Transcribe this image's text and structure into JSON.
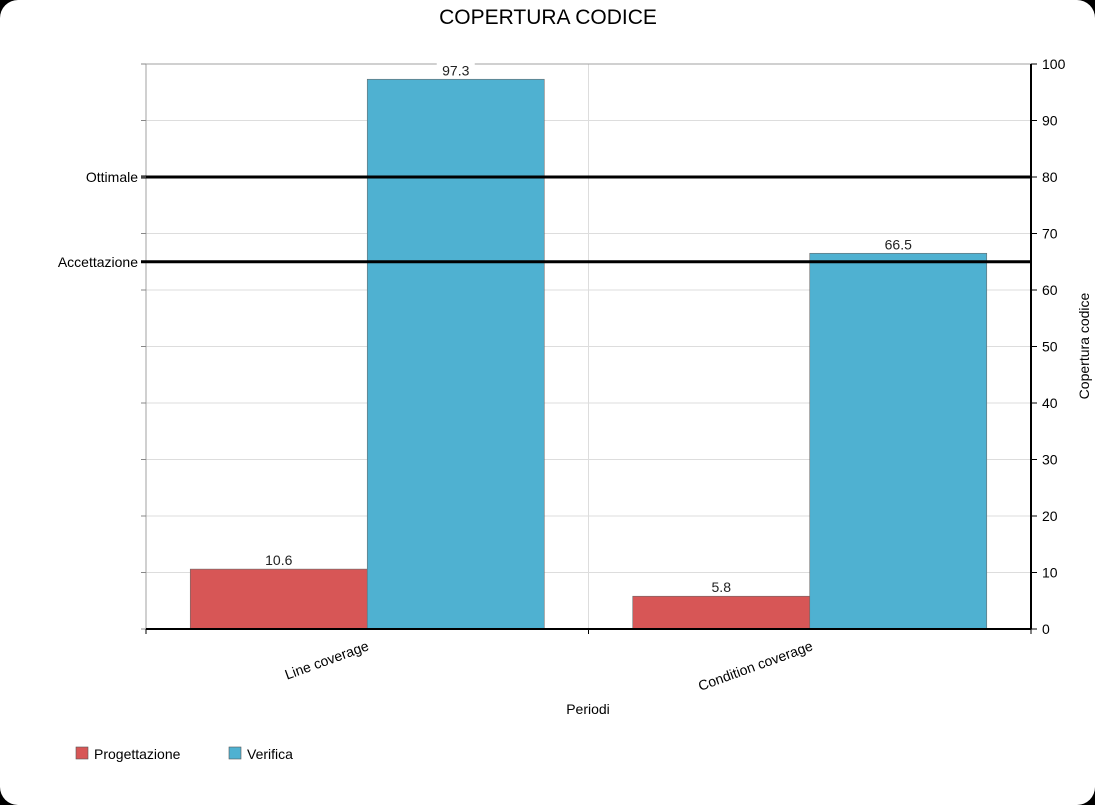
{
  "chart_data": {
    "type": "bar",
    "title": "COPERTURA CODICE",
    "xlabel": "Periodi",
    "ylabel": "Copertura codice",
    "categories": [
      "Line coverage",
      "Condition coverage"
    ],
    "series": [
      {
        "name": "Progettazione",
        "values": [
          10.6,
          5.8
        ],
        "color": "#d75656"
      },
      {
        "name": "Verifica",
        "values": [
          97.3,
          66.5
        ],
        "color": "#4fb1d1"
      }
    ],
    "data_labels": [
      "10.6",
      "97.3",
      "5.8",
      "66.5"
    ],
    "ylim": [
      0,
      100
    ],
    "y_ticks": [
      "0",
      "10",
      "20",
      "30",
      "40",
      "50",
      "60",
      "70",
      "80",
      "90",
      "100"
    ],
    "reference_lines": [
      {
        "label": "Ottimale",
        "value": 80
      },
      {
        "label": "Accettazione",
        "value": 65
      }
    ],
    "y_axis_side": "right",
    "grid": true,
    "legend_position": "bottom-left"
  }
}
